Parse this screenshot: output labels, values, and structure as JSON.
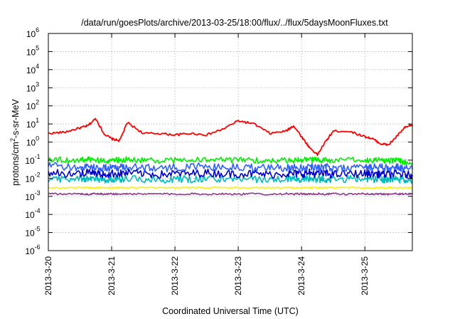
{
  "chart_data": {
    "type": "line",
    "title": "/data/run/goesPlots/archive/2013-03-25/18:00/flux/../flux/5daysMoonFluxes.txt",
    "xlabel": "Coordinated Universal Time (UTC)",
    "ylabel": "protons/cm²-s-sr-MeV",
    "yscale": "log",
    "ylim": [
      1e-06,
      1000000.0
    ],
    "ytick_exponents": [
      -6,
      -5,
      -4,
      -3,
      -2,
      -1,
      0,
      1,
      2,
      3,
      4,
      5,
      6
    ],
    "xlim": [
      "2013-03-20 00:00",
      "2013-03-25 18:00"
    ],
    "x_ticks": [
      "2013-3-20",
      "2013-3-21",
      "2013-3-22",
      "2013-3-23",
      "2013-3-24",
      "2013-3-25"
    ],
    "grid": true,
    "x": [
      "2013-03-20 00:00",
      "2013-03-20 06:00",
      "2013-03-20 12:00",
      "2013-03-20 15:00",
      "2013-03-20 18:00",
      "2013-03-20 21:00",
      "2013-03-21 00:00",
      "2013-03-21 03:00",
      "2013-03-21 06:00",
      "2013-03-21 12:00",
      "2013-03-21 18:00",
      "2013-03-22 00:00",
      "2013-03-22 06:00",
      "2013-03-22 12:00",
      "2013-03-22 18:00",
      "2013-03-23 00:00",
      "2013-03-23 06:00",
      "2013-03-23 12:00",
      "2013-03-23 18:00",
      "2013-03-23 21:00",
      "2013-03-24 00:00",
      "2013-03-24 03:00",
      "2013-03-24 06:00",
      "2013-03-24 09:00",
      "2013-03-24 12:00",
      "2013-03-24 18:00",
      "2013-03-25 00:00",
      "2013-03-25 03:00",
      "2013-03-25 06:00",
      "2013-03-25 09:00",
      "2013-03-25 12:00",
      "2013-03-25 15:00",
      "2013-03-25 18:00"
    ],
    "series": [
      {
        "color": "#ff0000",
        "values": [
          3,
          3.5,
          6,
          8,
          20,
          3,
          1.5,
          1.2,
          12,
          3,
          3,
          2.5,
          3,
          2.5,
          5,
          15,
          10,
          3,
          4,
          8,
          2,
          0.5,
          0.2,
          1,
          4,
          4,
          2,
          1.5,
          0.8,
          0.7,
          2,
          6,
          9
        ]
      },
      {
        "color": "#00ee00",
        "values": [
          0.12,
          0.1,
          0.1,
          0.11,
          0.1,
          0.09,
          0.1,
          0.1,
          0.11,
          0.1,
          0.09,
          0.1,
          0.1,
          0.11,
          0.1,
          0.1,
          0.1,
          0.09,
          0.1,
          0.1,
          0.1,
          0.11,
          0.1,
          0.1,
          0.09,
          0.1,
          0.1,
          0.1,
          0.1,
          0.09,
          0.1,
          0.08,
          0.07
        ]
      },
      {
        "color": "#3060ff",
        "values": [
          0.05,
          0.04,
          0.04,
          0.045,
          0.04,
          0.035,
          0.04,
          0.04,
          0.045,
          0.04,
          0.035,
          0.04,
          0.04,
          0.045,
          0.04,
          0.04,
          0.04,
          0.035,
          0.04,
          0.04,
          0.04,
          0.045,
          0.04,
          0.04,
          0.035,
          0.04,
          0.04,
          0.04,
          0.04,
          0.035,
          0.04,
          0.035,
          0.03
        ]
      },
      {
        "color": "#0000cc",
        "values": [
          0.02,
          0.018,
          0.018,
          0.02,
          0.018,
          0.016,
          0.018,
          0.018,
          0.02,
          0.018,
          0.016,
          0.018,
          0.018,
          0.02,
          0.018,
          0.018,
          0.018,
          0.016,
          0.018,
          0.018,
          0.018,
          0.02,
          0.018,
          0.018,
          0.016,
          0.018,
          0.018,
          0.018,
          0.018,
          0.016,
          0.018,
          0.016,
          0.015
        ]
      },
      {
        "color": "#00bbbb",
        "values": [
          0.01,
          0.009,
          0.009,
          0.01,
          0.009,
          0.008,
          0.009,
          0.009,
          0.01,
          0.009,
          0.008,
          0.009,
          0.009,
          0.01,
          0.009,
          0.009,
          0.009,
          0.008,
          0.009,
          0.009,
          0.009,
          0.01,
          0.009,
          0.009,
          0.008,
          0.009,
          0.009,
          0.009,
          0.009,
          0.008,
          0.009,
          0.008,
          0.008
        ]
      },
      {
        "color": "#ffee00",
        "values": [
          0.003,
          0.003,
          0.003,
          0.003,
          0.003,
          0.003,
          0.003,
          0.003,
          0.003,
          0.003,
          0.003,
          0.003,
          0.003,
          0.003,
          0.003,
          0.003,
          0.003,
          0.003,
          0.003,
          0.003,
          0.003,
          0.003,
          0.003,
          0.003,
          0.003,
          0.003,
          0.003,
          0.003,
          0.003,
          0.003,
          0.003,
          0.003,
          0.003
        ]
      },
      {
        "color": "#8b3a8b",
        "values": [
          0.0014,
          0.0013,
          0.0014,
          0.0013,
          0.0014,
          0.0013,
          0.0014,
          0.0013,
          0.0014,
          0.0013,
          0.0014,
          0.0013,
          0.0014,
          0.0013,
          0.0014,
          0.0013,
          0.0014,
          0.0013,
          0.0014,
          0.0013,
          0.0014,
          0.0013,
          0.0014,
          0.0013,
          0.0014,
          0.0013,
          0.0014,
          0.0013,
          0.0014,
          0.0013,
          0.0014,
          0.0013,
          0.0014
        ]
      }
    ]
  }
}
